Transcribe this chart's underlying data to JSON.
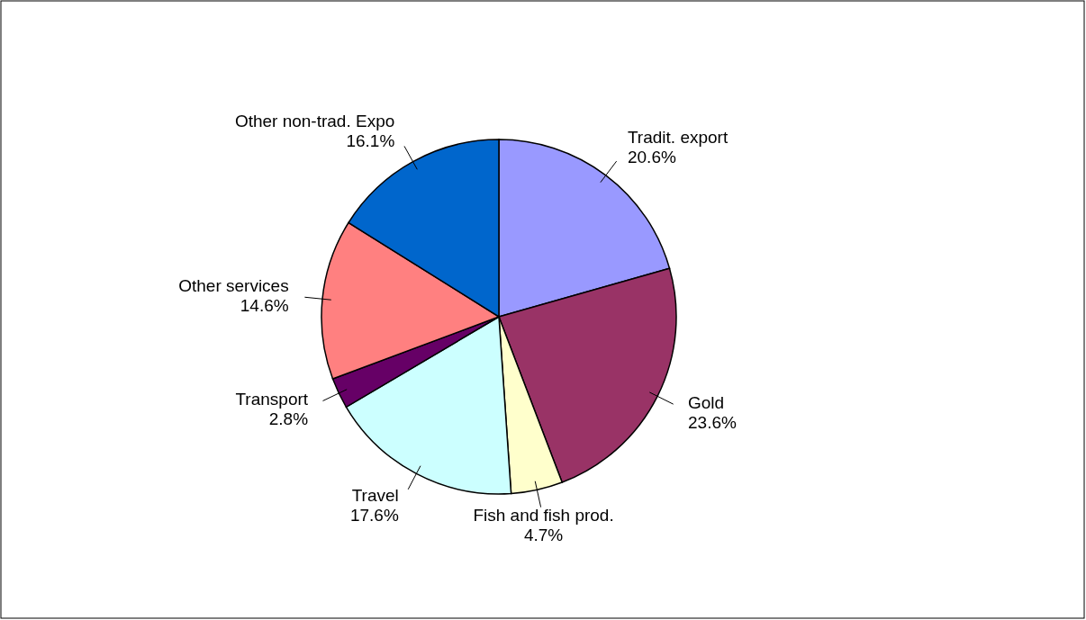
{
  "chart_data": {
    "type": "pie",
    "categories": [
      "Tradit. export",
      "Gold",
      "Fish and fish prod.",
      "Travel",
      "Transport",
      "Other services",
      "Other non-trad. Expo"
    ],
    "values": [
      20.6,
      23.6,
      4.7,
      17.6,
      2.8,
      14.6,
      16.1
    ],
    "value_labels": [
      "20.6%",
      "23.6%",
      "4.7%",
      "17.6%",
      "2.8%",
      "14.6%",
      "16.1%"
    ],
    "colors": [
      "#9999ff",
      "#993366",
      "#ffffcc",
      "#ccffff",
      "#660066",
      "#ff8080",
      "#0066cc"
    ]
  }
}
